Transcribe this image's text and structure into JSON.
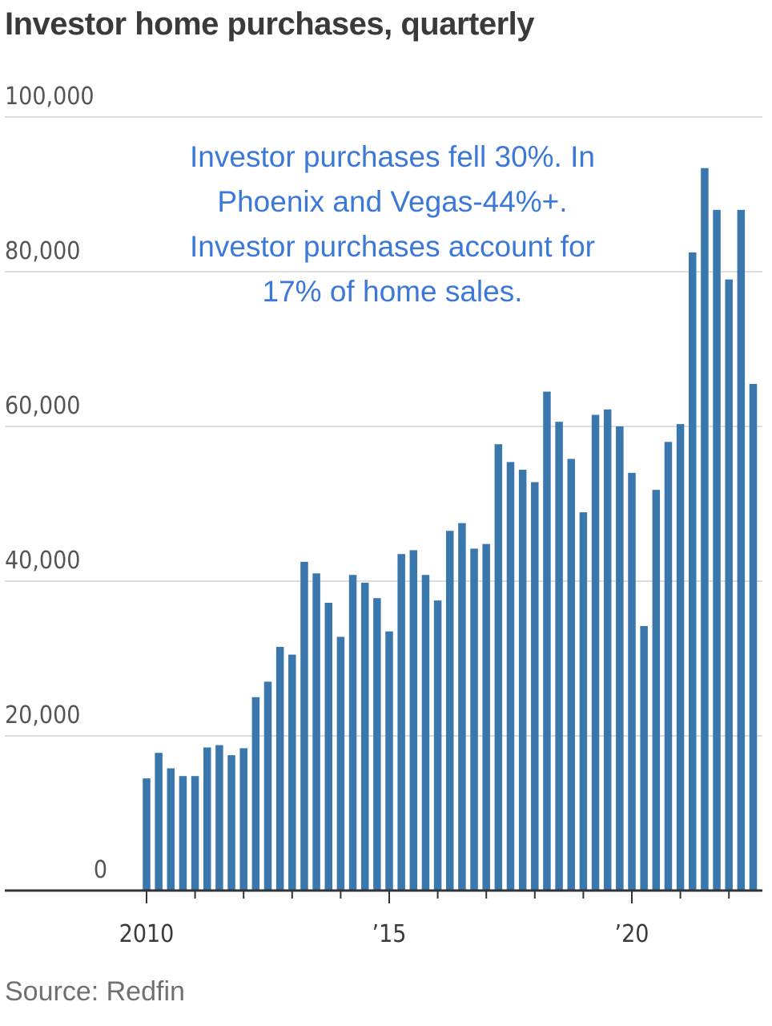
{
  "title": "Investor home purchases, quarterly",
  "source": "Source: Redfin",
  "annotation": "Investor purchases fell 30%. In\nPhoenix and Vegas-44%+.\nInvestor purchases account for\n17% of home sales.",
  "colors": {
    "bar": "#3a77ad",
    "grid": "#dddddd",
    "axis": "#333333",
    "annotation": "#3b78d8"
  },
  "chart_data": {
    "type": "bar",
    "title": "Investor home purchases, quarterly",
    "ylim": [
      0,
      100000
    ],
    "y_ticks": [
      {
        "value": 0,
        "label": "0"
      },
      {
        "value": 20000,
        "label": "20,000"
      },
      {
        "value": 40000,
        "label": "40,000"
      },
      {
        "value": 60000,
        "label": "60,000"
      },
      {
        "value": 80000,
        "label": "80,000"
      },
      {
        "value": 100000,
        "label": "100,000"
      }
    ],
    "x_ticks": [
      {
        "year": 2010,
        "label": "2010"
      },
      {
        "year": 2015,
        "label": "’15"
      },
      {
        "year": 2020,
        "label": "’20"
      }
    ],
    "grid": true,
    "categories": [
      "2010 Q1",
      "2010 Q2",
      "2010 Q3",
      "2010 Q4",
      "2011 Q1",
      "2011 Q2",
      "2011 Q3",
      "2011 Q4",
      "2012 Q1",
      "2012 Q2",
      "2012 Q3",
      "2012 Q4",
      "2013 Q1",
      "2013 Q2",
      "2013 Q3",
      "2013 Q4",
      "2014 Q1",
      "2014 Q2",
      "2014 Q3",
      "2014 Q4",
      "2015 Q1",
      "2015 Q2",
      "2015 Q3",
      "2015 Q4",
      "2016 Q1",
      "2016 Q2",
      "2016 Q3",
      "2016 Q4",
      "2017 Q1",
      "2017 Q2",
      "2017 Q3",
      "2017 Q4",
      "2018 Q1",
      "2018 Q2",
      "2018 Q3",
      "2018 Q4",
      "2019 Q1",
      "2019 Q2",
      "2019 Q3",
      "2019 Q4",
      "2020 Q1",
      "2020 Q2",
      "2020 Q3",
      "2020 Q4",
      "2021 Q1",
      "2021 Q2",
      "2021 Q3",
      "2021 Q4",
      "2022 Q1",
      "2022 Q2",
      "2022 Q3"
    ],
    "values": [
      14500,
      17800,
      15800,
      14800,
      14800,
      18500,
      18800,
      17500,
      18400,
      25000,
      27000,
      31500,
      30500,
      42500,
      41000,
      37200,
      32800,
      40800,
      39800,
      37800,
      33500,
      43500,
      44000,
      40800,
      37500,
      46500,
      47500,
      44200,
      44800,
      57700,
      55400,
      54400,
      52800,
      64500,
      60600,
      55800,
      48900,
      61500,
      62200,
      60000,
      54000,
      34200,
      51800,
      58000,
      60300,
      82500,
      93400,
      88000,
      79000,
      88000,
      65500
    ]
  }
}
